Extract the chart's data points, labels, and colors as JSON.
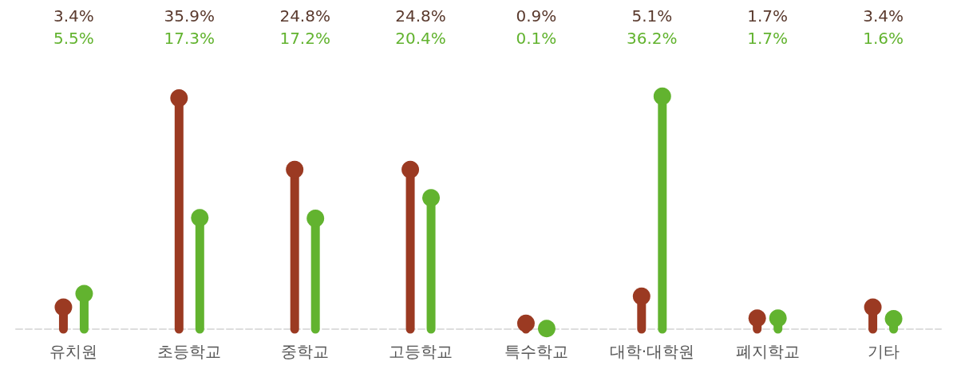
{
  "chart_data": {
    "type": "lollipop",
    "categories": [
      "유치원",
      "초등학교",
      "중학교",
      "고등학교",
      "특수학교",
      "대학·대학원",
      "폐지학교",
      "기타"
    ],
    "series": [
      {
        "color": "#9b3a22",
        "values": [
          3.4,
          35.9,
          24.8,
          24.8,
          0.9,
          5.1,
          1.7,
          3.4
        ],
        "value_labels": [
          "3.4%",
          "35.9%",
          "24.8%",
          "24.8%",
          "0.9%",
          "5.1%",
          "1.7%",
          "3.4%"
        ]
      },
      {
        "color": "#62b32f",
        "values": [
          5.5,
          17.3,
          17.2,
          20.4,
          0.1,
          36.2,
          1.7,
          1.6
        ],
        "value_labels": [
          "5.5%",
          "17.3%",
          "17.2%",
          "20.4%",
          "0.1%",
          "36.2%",
          "1.7%",
          "1.6%"
        ]
      }
    ],
    "marker": "circle"
  }
}
